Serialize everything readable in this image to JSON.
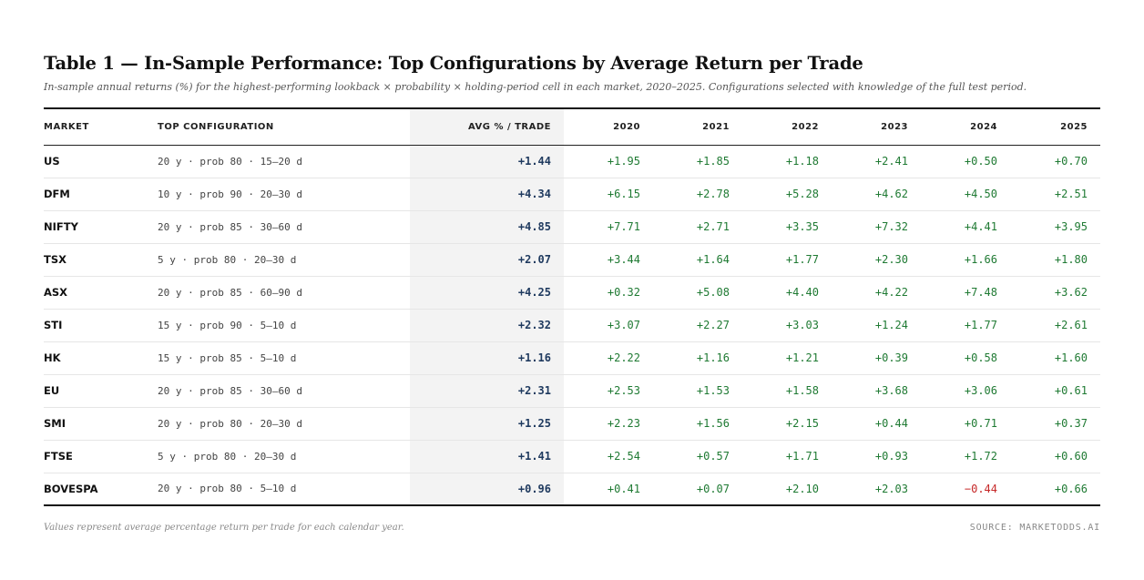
{
  "title": "Table 1 — In-Sample Performance: Top Configurations by Average Return per Trade",
  "subtitle": "In-sample annual returns (%) for the highest-performing lookback × probability × holding-period cell in each market, 2020–2025. Configurations selected with knowledge of the full test period.",
  "columns": [
    "MARKET",
    "TOP CONFIGURATION",
    "AVG % / TRADE",
    "2020",
    "2021",
    "2022",
    "2023",
    "2024",
    "2025"
  ],
  "rows": [
    {
      "market": "US",
      "config": "20 y · prob 80 · 15–20 d",
      "avg": "+1.44",
      "years": [
        "+1.95",
        "+1.85",
        "+1.18",
        "+2.41",
        "+0.50",
        "+0.70"
      ]
    },
    {
      "market": "DFM",
      "config": "10 y · prob 90 · 20–30 d",
      "avg": "+4.34",
      "years": [
        "+6.15",
        "+2.78",
        "+5.28",
        "+4.62",
        "+4.50",
        "+2.51"
      ]
    },
    {
      "market": "NIFTY",
      "config": "20 y · prob 85 · 30–60 d",
      "avg": "+4.85",
      "years": [
        "+7.71",
        "+2.71",
        "+3.35",
        "+7.32",
        "+4.41",
        "+3.95"
      ]
    },
    {
      "market": "TSX",
      "config": "5 y · prob 80 · 20–30 d",
      "avg": "+2.07",
      "years": [
        "+3.44",
        "+1.64",
        "+1.77",
        "+2.30",
        "+1.66",
        "+1.80"
      ]
    },
    {
      "market": "ASX",
      "config": "20 y · prob 85 · 60–90 d",
      "avg": "+4.25",
      "years": [
        "+0.32",
        "+5.08",
        "+4.40",
        "+4.22",
        "+7.48",
        "+3.62"
      ]
    },
    {
      "market": "STI",
      "config": "15 y · prob 90 · 5–10 d",
      "avg": "+2.32",
      "years": [
        "+3.07",
        "+2.27",
        "+3.03",
        "+1.24",
        "+1.77",
        "+2.61"
      ]
    },
    {
      "market": "HK",
      "config": "15 y · prob 85 · 5–10 d",
      "avg": "+1.16",
      "years": [
        "+2.22",
        "+1.16",
        "+1.21",
        "+0.39",
        "+0.58",
        "+1.60"
      ]
    },
    {
      "market": "EU",
      "config": "20 y · prob 85 · 30–60 d",
      "avg": "+2.31",
      "years": [
        "+2.53",
        "+1.53",
        "+1.58",
        "+3.68",
        "+3.06",
        "+0.61"
      ]
    },
    {
      "market": "SMI",
      "config": "20 y · prob 80 · 20–30 d",
      "avg": "+1.25",
      "years": [
        "+2.23",
        "+1.56",
        "+2.15",
        "+0.44",
        "+0.71",
        "+0.37"
      ]
    },
    {
      "market": "FTSE",
      "config": "5 y · prob 80 · 20–30 d",
      "avg": "+1.41",
      "years": [
        "+2.54",
        "+0.57",
        "+1.71",
        "+0.93",
        "+1.72",
        "+0.60"
      ]
    },
    {
      "market": "BOVESPA",
      "config": "20 y · prob 80 · 5–10 d",
      "avg": "+0.96",
      "years": [
        "+0.41",
        "+0.07",
        "+2.10",
        "+2.03",
        "−0.44",
        "+0.66"
      ]
    }
  ],
  "footer": {
    "note": "Values represent average percentage return per trade for each calendar year.",
    "source": "SOURCE: MARKETODDS.AI"
  },
  "colors": {
    "positive": "#1f7a33",
    "negative": "#c62828",
    "average": "#1f3a5f",
    "highlight_column": "#f3f3f3"
  }
}
